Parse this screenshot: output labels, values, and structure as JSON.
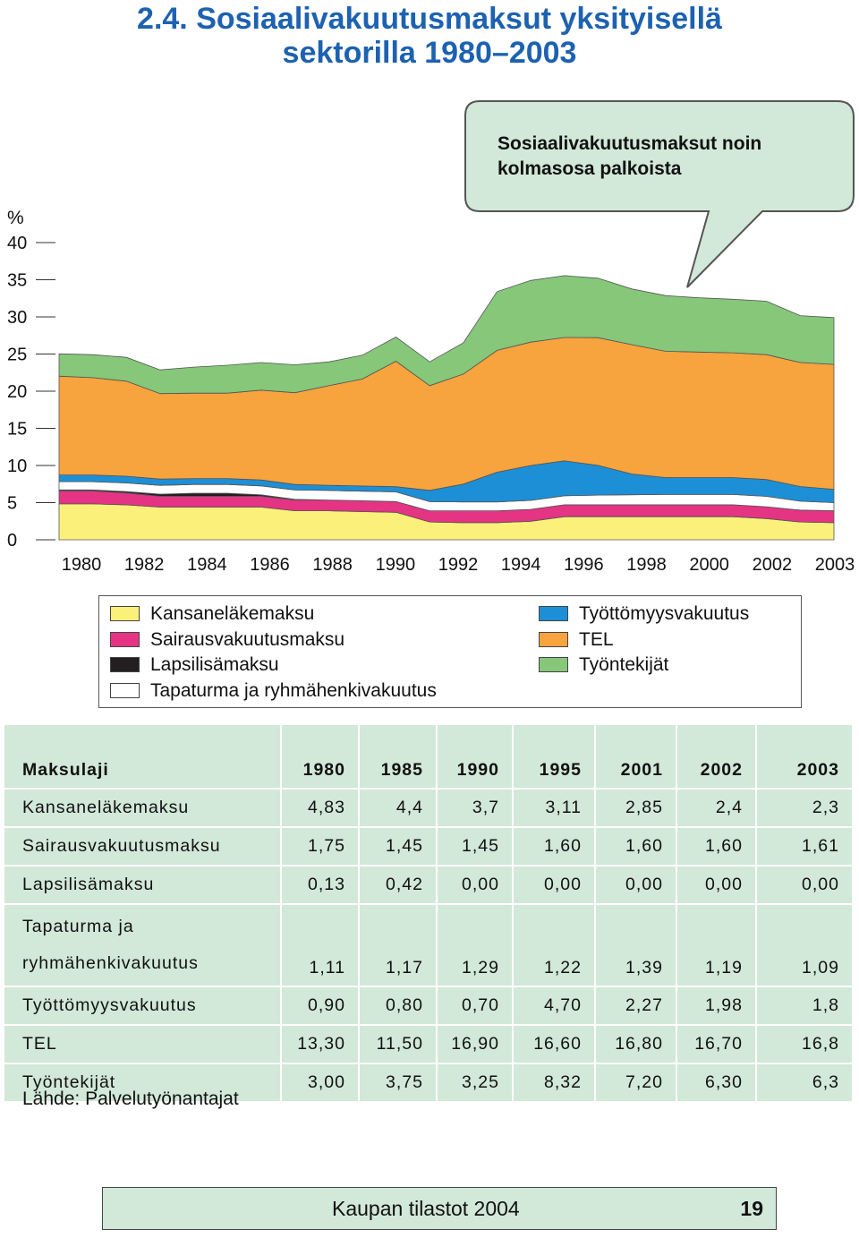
{
  "page_title": {
    "line1": "2.4.  Sosiaalivakuutusmaksut yksityisellä",
    "line2": "sektorilla 1980–2003"
  },
  "chart_data": {
    "type": "area",
    "stacked": true,
    "unit_label": "%",
    "ylim": [
      0,
      40
    ],
    "y_ticks": [
      0,
      5,
      10,
      15,
      20,
      25,
      30,
      35,
      40
    ],
    "x_tick_labels": [
      "1980",
      "1982",
      "1984",
      "1986",
      "1988",
      "1990",
      "1992",
      "1994",
      "1996",
      "1998",
      "2000",
      "2002",
      "2003"
    ],
    "x": [
      1980,
      1981,
      1982,
      1983,
      1984,
      1985,
      1986,
      1987,
      1988,
      1989,
      1990,
      1991,
      1992,
      1993,
      1994,
      1995,
      1996,
      1997,
      1998,
      1999,
      2000,
      2001,
      2002,
      2003
    ],
    "series": [
      {
        "name": "Kansaneläkemaksu",
        "color": "#fbf07a",
        "values": [
          4.83,
          4.83,
          4.7,
          4.4,
          4.4,
          4.4,
          4.4,
          3.9,
          3.9,
          3.8,
          3.7,
          2.4,
          2.3,
          2.3,
          2.5,
          3.11,
          3.11,
          3.11,
          3.11,
          3.11,
          3.11,
          2.85,
          2.4,
          2.3
        ]
      },
      {
        "name": "Sairausvakuutusmaksu",
        "color": "#e43483",
        "values": [
          1.75,
          1.75,
          1.6,
          1.45,
          1.45,
          1.45,
          1.45,
          1.45,
          1.45,
          1.45,
          1.45,
          1.5,
          1.6,
          1.6,
          1.6,
          1.6,
          1.6,
          1.6,
          1.6,
          1.6,
          1.6,
          1.6,
          1.6,
          1.61
        ]
      },
      {
        "name": "Lapsilisämaksu",
        "color": "#231f20",
        "values": [
          0.13,
          0.13,
          0.2,
          0.3,
          0.42,
          0.42,
          0.2,
          0.1,
          0,
          0,
          0,
          0,
          0,
          0,
          0,
          0,
          0,
          0,
          0,
          0,
          0,
          0,
          0,
          0
        ]
      },
      {
        "name": "Tapaturma ja ryhmähenkivakuutus",
        "color": "#ffffff",
        "values": [
          1.11,
          1.11,
          1.15,
          1.17,
          1.17,
          1.17,
          1.2,
          1.25,
          1.29,
          1.29,
          1.29,
          1.25,
          1.2,
          1.2,
          1.2,
          1.22,
          1.3,
          1.35,
          1.39,
          1.39,
          1.39,
          1.39,
          1.19,
          1.09
        ]
      },
      {
        "name": "Työttömyysvakuutus",
        "color": "#1d8fd6",
        "values": [
          0.9,
          0.9,
          0.9,
          0.85,
          0.8,
          0.8,
          0.8,
          0.75,
          0.7,
          0.7,
          0.7,
          1.5,
          2.4,
          4.0,
          4.7,
          4.7,
          4.0,
          2.8,
          2.27,
          2.27,
          2.27,
          2.27,
          1.98,
          1.8
        ]
      },
      {
        "name": "TEL",
        "color": "#f7a33e",
        "values": [
          13.3,
          13.1,
          12.8,
          11.5,
          11.5,
          11.5,
          12.1,
          12.35,
          13.4,
          14.4,
          16.9,
          14.1,
          14.8,
          16.4,
          16.6,
          16.6,
          17.2,
          17.4,
          17.0,
          16.9,
          16.8,
          16.8,
          16.7,
          16.8
        ]
      },
      {
        "name": "Työntekijät",
        "color": "#86c77a",
        "values": [
          3.0,
          3.1,
          3.2,
          3.2,
          3.5,
          3.75,
          3.7,
          3.75,
          3.2,
          3.2,
          3.25,
          3.2,
          4.2,
          7.9,
          8.3,
          8.32,
          8.0,
          7.5,
          7.5,
          7.3,
          7.2,
          7.2,
          6.3,
          6.3
        ]
      }
    ],
    "callout": {
      "line1": "Sosiaalivakuutusmaksut noin",
      "line2": "kolmasosa palkoista"
    }
  },
  "legend": {
    "left": [
      {
        "label": "Kansaneläkemaksu",
        "color": "#fbf07a"
      },
      {
        "label": "Sairausvakuutusmaksu",
        "color": "#e43483"
      },
      {
        "label": "Lapsilisämaksu",
        "color": "#231f20"
      },
      {
        "label": "Tapaturma ja ryhmähenkivakuutus",
        "color": "#ffffff"
      }
    ],
    "right": [
      {
        "label": "Työttömyysvakuutus",
        "color": "#1d8fd6"
      },
      {
        "label": "TEL",
        "color": "#f7a33e"
      },
      {
        "label": "Työntekijät",
        "color": "#86c77a"
      }
    ]
  },
  "table": {
    "header": [
      "Maksulaji",
      "1980",
      "1985",
      "1990",
      "1995",
      "2001",
      "2002",
      "2003"
    ],
    "rows": [
      {
        "label": "Kansaneläkemaksu",
        "values": [
          "4,83",
          "4,4",
          "3,7",
          "3,11",
          "2,85",
          "2,4",
          "2,3"
        ]
      },
      {
        "label": "Sairausvakuutusmaksu",
        "values": [
          "1,75",
          "1,45",
          "1,45",
          "1,60",
          "1,60",
          "1,60",
          "1,61"
        ]
      },
      {
        "label": "Lapsilisämaksu",
        "values": [
          "0,13",
          "0,42",
          "0,00",
          "0,00",
          "0,00",
          "0,00",
          "0,00"
        ]
      },
      {
        "label_line1": "Tapaturma ja",
        "label_line2": "ryhmähenkivakuutus",
        "values": [
          "1,11",
          "1,17",
          "1,29",
          "1,22",
          "1,39",
          "1,19",
          "1,09"
        ]
      },
      {
        "label": "Työttömyysvakuutus",
        "values": [
          "0,90",
          "0,80",
          "0,70",
          "4,70",
          "2,27",
          "1,98",
          "1,8"
        ]
      },
      {
        "label": "TEL",
        "values": [
          "13,30",
          "11,50",
          "16,90",
          "16,60",
          "16,80",
          "16,70",
          "16,8"
        ]
      },
      {
        "label": "Työntekijät",
        "values": [
          "3,00",
          "3,75",
          "3,25",
          "8,32",
          "7,20",
          "6,30",
          "6,3"
        ]
      }
    ]
  },
  "source": "Lähde:  Palvelutyönantajat",
  "footer": {
    "publication": "Kaupan tilastot 2004",
    "page_number": "19"
  }
}
